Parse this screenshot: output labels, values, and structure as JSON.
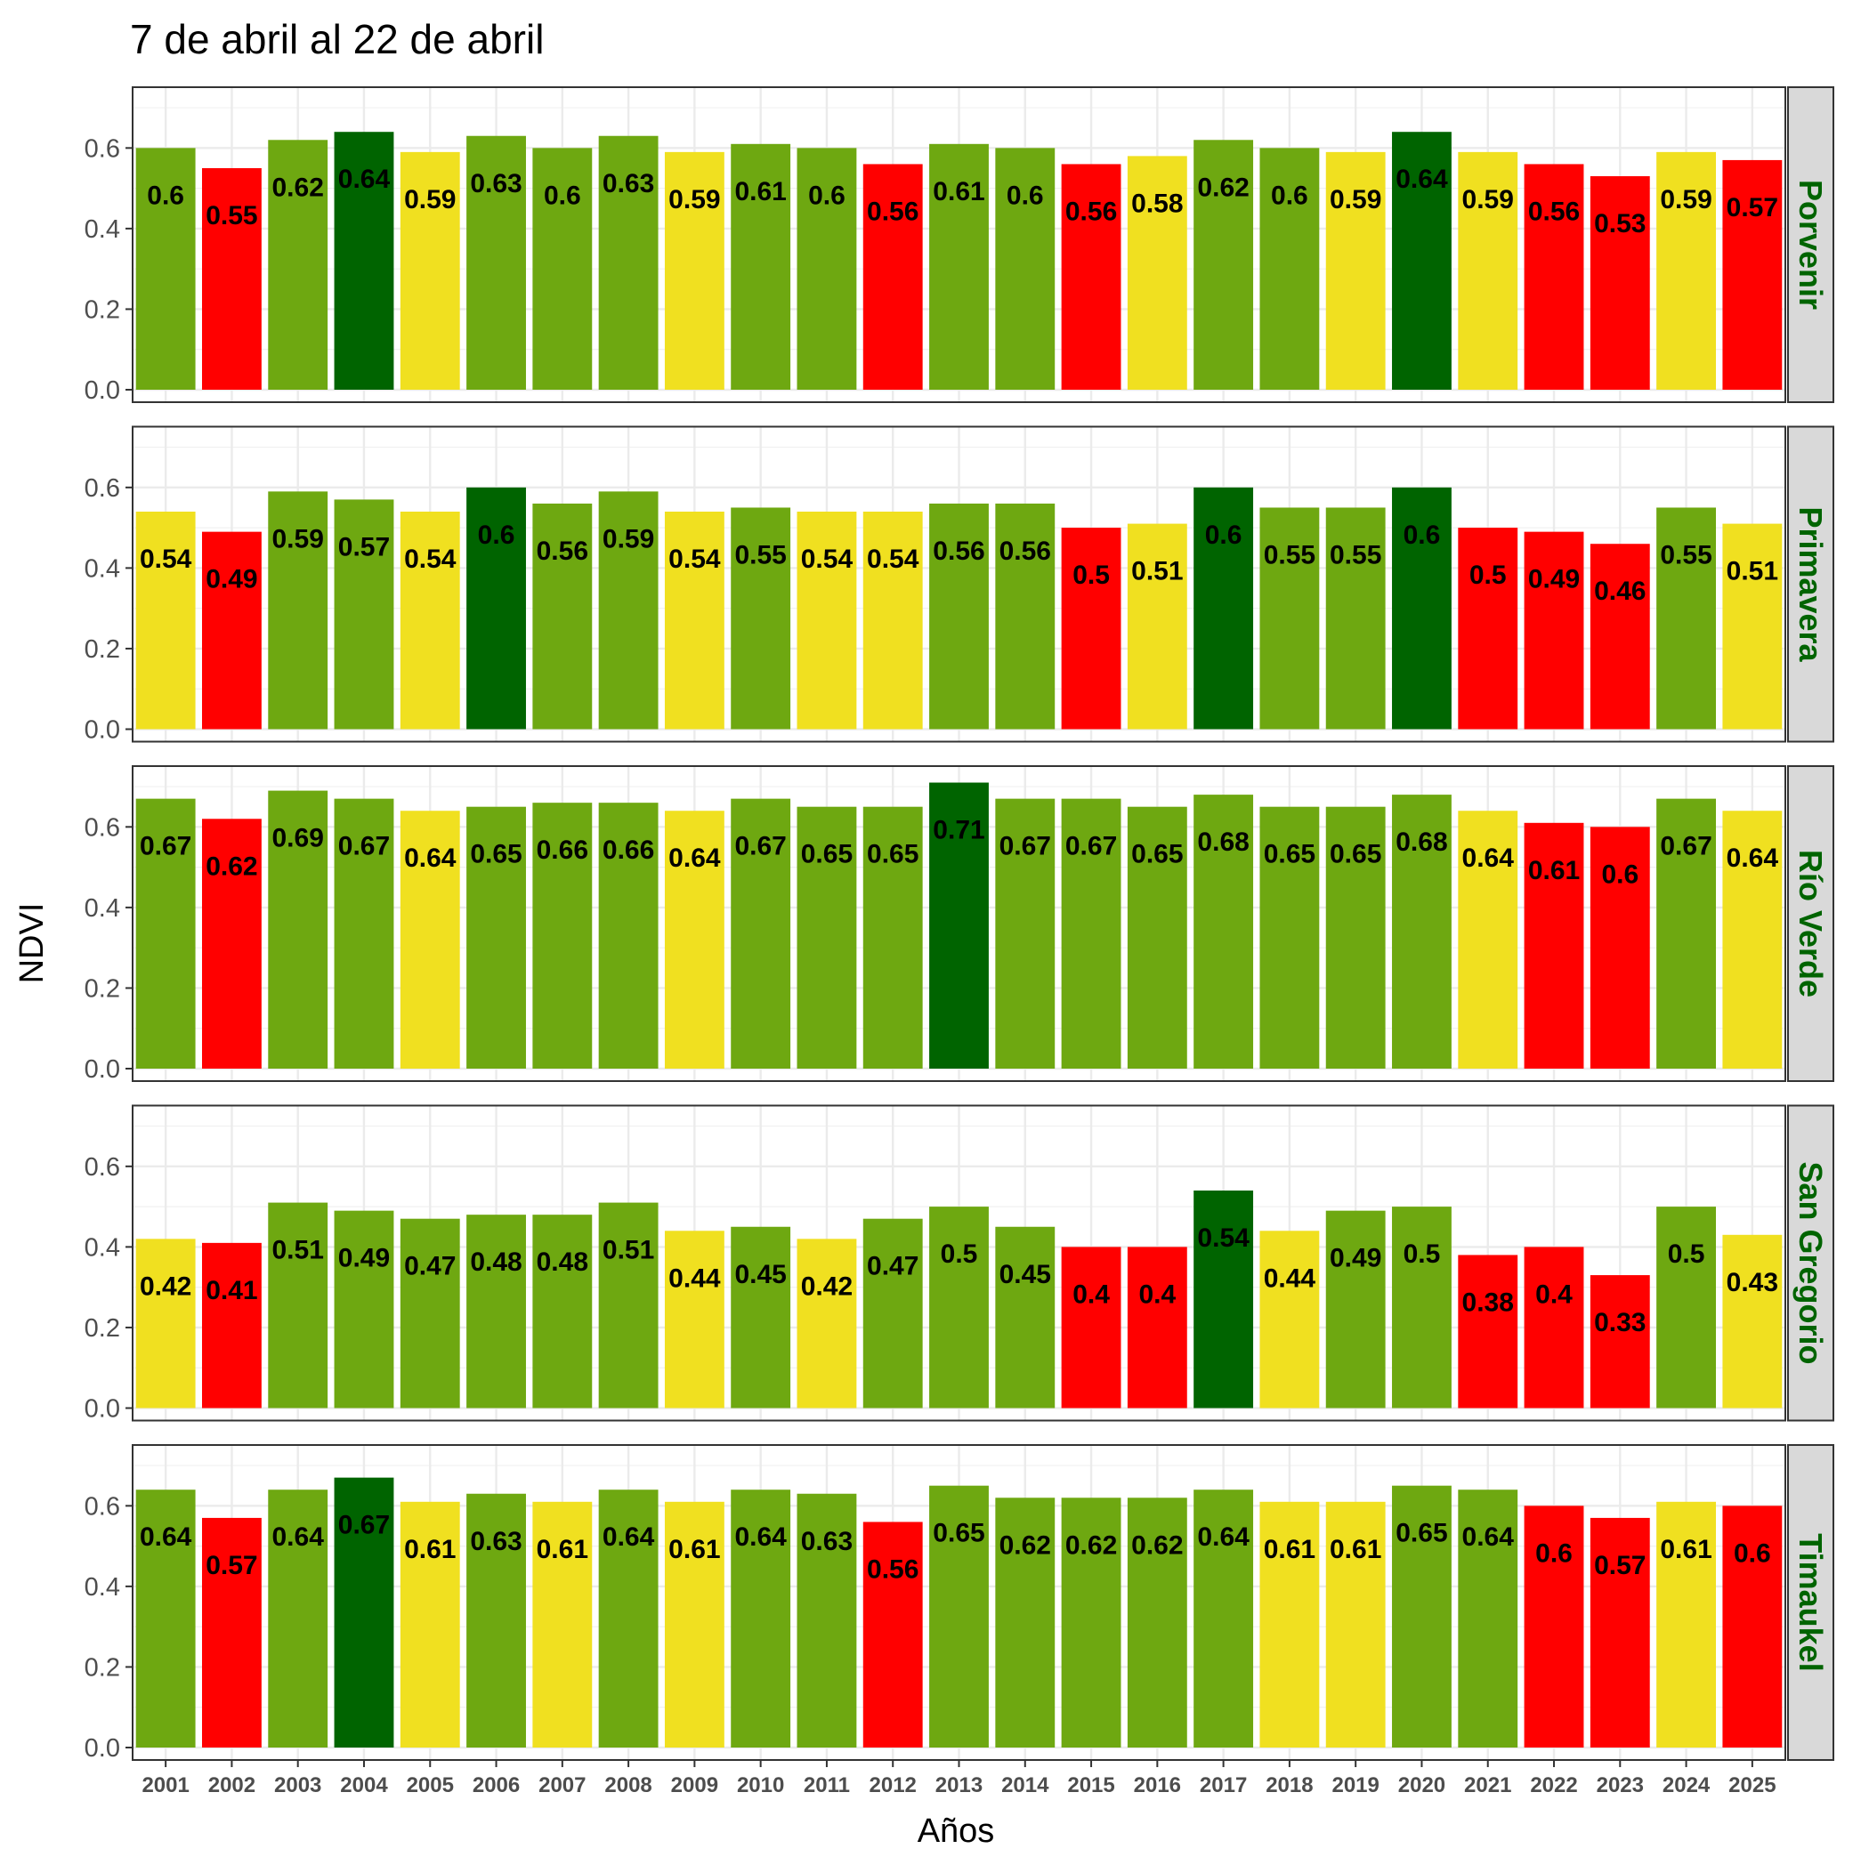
{
  "chart_data": {
    "type": "bar",
    "title": "7 de abril al 22 de abril",
    "xlabel": "Años",
    "ylabel": "NDVI",
    "ylim": [
      0,
      0.72
    ],
    "yticks": [
      "0.0",
      "0.2",
      "0.4",
      "0.6"
    ],
    "ytick_values": [
      0,
      0.2,
      0.4,
      0.6
    ],
    "grid": true,
    "legend": "none",
    "categories": [
      "2001",
      "2002",
      "2003",
      "2004",
      "2005",
      "2006",
      "2007",
      "2008",
      "2009",
      "2010",
      "2011",
      "2012",
      "2013",
      "2014",
      "2015",
      "2016",
      "2017",
      "2018",
      "2019",
      "2020",
      "2021",
      "2022",
      "2023",
      "2024",
      "2025"
    ],
    "colors": {
      "dark_green": "#006400",
      "green": "#6ea811",
      "yellow": "#f0e020",
      "red": "#ff0000",
      "strip_fill": "#d9d9d9",
      "strip_text": "#006400"
    },
    "series": [
      {
        "name": "Porvenir",
        "values": [
          0.6,
          0.55,
          0.62,
          0.64,
          0.59,
          0.63,
          0.6,
          0.63,
          0.59,
          0.61,
          0.6,
          0.56,
          0.61,
          0.6,
          0.56,
          0.58,
          0.62,
          0.6,
          0.59,
          0.64,
          0.59,
          0.56,
          0.53,
          0.59,
          0.57
        ],
        "labels": [
          "0.6",
          "0.55",
          "0.62",
          "0.64",
          "0.59",
          "0.63",
          "0.6",
          "0.63",
          "0.59",
          "0.61",
          "0.6",
          "0.56",
          "0.61",
          "0.6",
          "0.56",
          "0.58",
          "0.62",
          "0.6",
          "0.59",
          "0.64",
          "0.59",
          "0.56",
          "0.53",
          "0.59",
          "0.57"
        ],
        "bar_colors": [
          "green",
          "red",
          "green",
          "dark_green",
          "yellow",
          "green",
          "green",
          "green",
          "yellow",
          "green",
          "green",
          "red",
          "green",
          "green",
          "red",
          "yellow",
          "green",
          "green",
          "yellow",
          "dark_green",
          "yellow",
          "red",
          "red",
          "yellow",
          "red"
        ]
      },
      {
        "name": "Primavera",
        "values": [
          0.54,
          0.49,
          0.59,
          0.57,
          0.54,
          0.6,
          0.56,
          0.59,
          0.54,
          0.55,
          0.54,
          0.54,
          0.56,
          0.56,
          0.5,
          0.51,
          0.6,
          0.55,
          0.55,
          0.6,
          0.5,
          0.49,
          0.46,
          0.55,
          0.51
        ],
        "labels": [
          "0.54",
          "0.49",
          "0.59",
          "0.57",
          "0.54",
          "0.6",
          "0.56",
          "0.59",
          "0.54",
          "0.55",
          "0.54",
          "0.54",
          "0.56",
          "0.56",
          "0.5",
          "0.51",
          "0.6",
          "0.55",
          "0.55",
          "0.6",
          "0.5",
          "0.49",
          "0.46",
          "0.55",
          "0.51"
        ],
        "bar_colors": [
          "yellow",
          "red",
          "green",
          "green",
          "yellow",
          "dark_green",
          "green",
          "green",
          "yellow",
          "green",
          "yellow",
          "yellow",
          "green",
          "green",
          "red",
          "yellow",
          "dark_green",
          "green",
          "green",
          "dark_green",
          "red",
          "red",
          "red",
          "green",
          "yellow"
        ]
      },
      {
        "name": "Río Verde",
        "values": [
          0.67,
          0.62,
          0.69,
          0.67,
          0.64,
          0.65,
          0.66,
          0.66,
          0.64,
          0.67,
          0.65,
          0.65,
          0.71,
          0.67,
          0.67,
          0.65,
          0.68,
          0.65,
          0.65,
          0.68,
          0.64,
          0.61,
          0.6,
          0.67,
          0.64
        ],
        "labels": [
          "0.67",
          "0.62",
          "0.69",
          "0.67",
          "0.64",
          "0.65",
          "0.66",
          "0.66",
          "0.64",
          "0.67",
          "0.65",
          "0.65",
          "0.71",
          "0.67",
          "0.67",
          "0.65",
          "0.68",
          "0.65",
          "0.65",
          "0.68",
          "0.64",
          "0.61",
          "0.6",
          "0.67",
          "0.64"
        ],
        "bar_colors": [
          "green",
          "red",
          "green",
          "green",
          "yellow",
          "green",
          "green",
          "green",
          "yellow",
          "green",
          "green",
          "green",
          "dark_green",
          "green",
          "green",
          "green",
          "green",
          "green",
          "green",
          "green",
          "yellow",
          "red",
          "red",
          "green",
          "yellow"
        ]
      },
      {
        "name": "San Gregorio",
        "values": [
          0.42,
          0.41,
          0.51,
          0.49,
          0.47,
          0.48,
          0.48,
          0.51,
          0.44,
          0.45,
          0.42,
          0.47,
          0.5,
          0.45,
          0.4,
          0.4,
          0.54,
          0.44,
          0.49,
          0.5,
          0.38,
          0.4,
          0.33,
          0.5,
          0.43
        ],
        "labels": [
          "0.42",
          "0.41",
          "0.51",
          "0.49",
          "0.47",
          "0.48",
          "0.48",
          "0.51",
          "0.44",
          "0.45",
          "0.42",
          "0.47",
          "0.5",
          "0.45",
          "0.4",
          "0.4",
          "0.54",
          "0.44",
          "0.49",
          "0.5",
          "0.38",
          "0.4",
          "0.33",
          "0.5",
          "0.43"
        ],
        "bar_colors": [
          "yellow",
          "red",
          "green",
          "green",
          "green",
          "green",
          "green",
          "green",
          "yellow",
          "green",
          "yellow",
          "green",
          "green",
          "green",
          "red",
          "red",
          "dark_green",
          "yellow",
          "green",
          "green",
          "red",
          "red",
          "red",
          "green",
          "yellow"
        ]
      },
      {
        "name": "Timaukel",
        "values": [
          0.64,
          0.57,
          0.64,
          0.67,
          0.61,
          0.63,
          0.61,
          0.64,
          0.61,
          0.64,
          0.63,
          0.56,
          0.65,
          0.62,
          0.62,
          0.62,
          0.64,
          0.61,
          0.61,
          0.65,
          0.64,
          0.6,
          0.57,
          0.61,
          0.6
        ],
        "labels": [
          "0.64",
          "0.57",
          "0.64",
          "0.67",
          "0.61",
          "0.63",
          "0.61",
          "0.64",
          "0.61",
          "0.64",
          "0.63",
          "0.56",
          "0.65",
          "0.62",
          "0.62",
          "0.62",
          "0.64",
          "0.61",
          "0.61",
          "0.65",
          "0.64",
          "0.6",
          "0.57",
          "0.61",
          "0.6"
        ],
        "bar_colors": [
          "green",
          "red",
          "green",
          "dark_green",
          "yellow",
          "green",
          "yellow",
          "green",
          "yellow",
          "green",
          "green",
          "red",
          "green",
          "green",
          "green",
          "green",
          "green",
          "yellow",
          "yellow",
          "green",
          "green",
          "red",
          "red",
          "yellow",
          "red"
        ]
      }
    ]
  }
}
